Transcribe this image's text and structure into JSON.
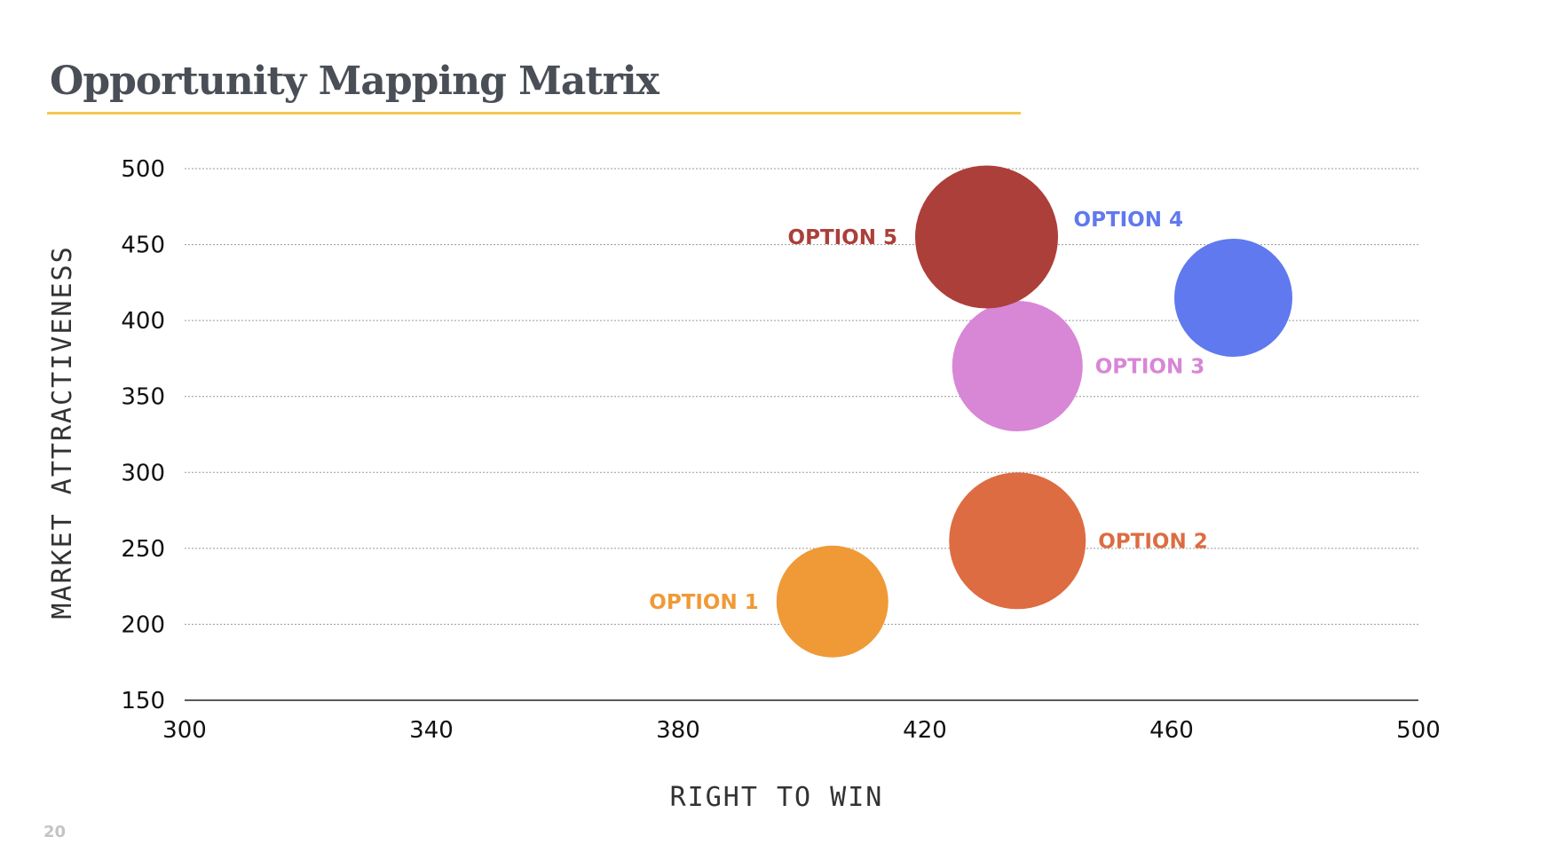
{
  "page": {
    "title": "Opportunity Mapping Matrix",
    "page_number": "20"
  },
  "colors": {
    "title_rule": "#f2c94c",
    "gridline": "#9a9a9a",
    "axis_line": "#222222"
  },
  "chart_data": {
    "type": "scatter",
    "variant": "bubble",
    "xlabel": "RIGHT TO WIN",
    "ylabel": "MARKET ATTRACTIVENESS",
    "xlim": [
      300,
      500
    ],
    "ylim": [
      150,
      500
    ],
    "xticks": [
      300,
      340,
      380,
      420,
      460,
      500
    ],
    "yticks": [
      150,
      200,
      250,
      300,
      350,
      400,
      450,
      500
    ],
    "grid": "horizontal dotted",
    "legend": "none",
    "points": [
      {
        "label": "OPTION 1",
        "x": 405,
        "y": 215,
        "size": 18,
        "color": "#ef9a37",
        "label_side": "left"
      },
      {
        "label": "OPTION 2",
        "x": 435,
        "y": 255,
        "size": 22,
        "color": "#dd6c42",
        "label_side": "right"
      },
      {
        "label": "OPTION 3",
        "x": 435,
        "y": 370,
        "size": 21,
        "color": "#d886d6",
        "label_side": "right"
      },
      {
        "label": "OPTION 4",
        "x": 470,
        "y": 415,
        "size": 19,
        "color": "#6079ee",
        "label_side": "top-left"
      },
      {
        "label": "OPTION 5",
        "x": 430,
        "y": 455,
        "size": 23,
        "color": "#ac3f3a",
        "label_side": "left"
      }
    ]
  }
}
